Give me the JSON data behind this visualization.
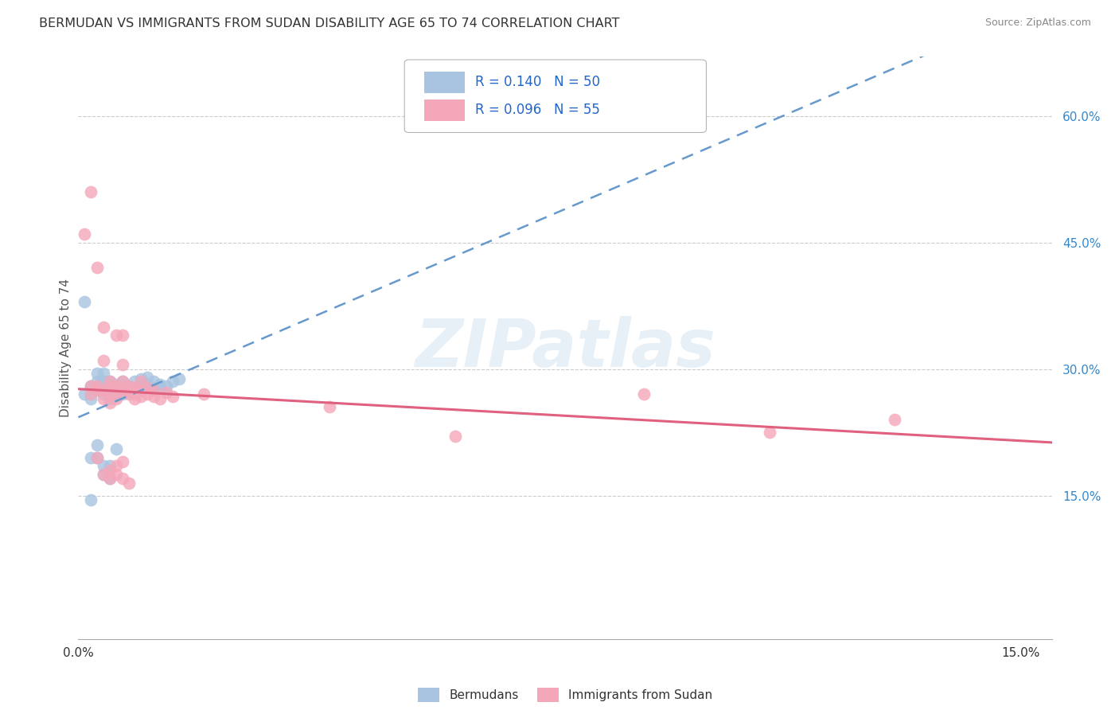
{
  "title": "BERMUDAN VS IMMIGRANTS FROM SUDAN DISABILITY AGE 65 TO 74 CORRELATION CHART",
  "source": "Source: ZipAtlas.com",
  "ylabel": "Disability Age 65 to 74",
  "xlim": [
    0.0,
    0.155
  ],
  "ylim": [
    -0.02,
    0.67
  ],
  "ytick_positions": [
    0.15,
    0.3,
    0.45,
    0.6
  ],
  "ytick_labels": [
    "15.0%",
    "30.0%",
    "45.0%",
    "60.0%"
  ],
  "xtick_positions": [
    0.0,
    0.15
  ],
  "xtick_labels": [
    "0.0%",
    "15.0%"
  ],
  "legend_labels": [
    "Bermudans",
    "Immigrants from Sudan"
  ],
  "r_blue": "0.140",
  "n_blue": "50",
  "r_pink": "0.096",
  "n_pink": "55",
  "blue_color": "#a8c4e0",
  "pink_color": "#f4a7b9",
  "blue_line_color": "#6699cc",
  "pink_line_color": "#e06080",
  "grid_color": "#cccccc",
  "watermark": "ZIPatlas",
  "blue_x": [
    0.001,
    0.002,
    0.002,
    0.003,
    0.003,
    0.003,
    0.004,
    0.004,
    0.004,
    0.005,
    0.005,
    0.005,
    0.005,
    0.006,
    0.006,
    0.006,
    0.006,
    0.006,
    0.007,
    0.007,
    0.007,
    0.007,
    0.008,
    0.008,
    0.008,
    0.009,
    0.009,
    0.009,
    0.01,
    0.01,
    0.01,
    0.011,
    0.011,
    0.012,
    0.012,
    0.013,
    0.013,
    0.014,
    0.015,
    0.016,
    0.001,
    0.002,
    0.003,
    0.003,
    0.004,
    0.004,
    0.005,
    0.005,
    0.006,
    0.002
  ],
  "blue_y": [
    0.27,
    0.265,
    0.28,
    0.275,
    0.285,
    0.295,
    0.27,
    0.285,
    0.295,
    0.275,
    0.285,
    0.265,
    0.28,
    0.27,
    0.278,
    0.275,
    0.282,
    0.268,
    0.275,
    0.28,
    0.27,
    0.285,
    0.278,
    0.272,
    0.28,
    0.275,
    0.285,
    0.278,
    0.28,
    0.275,
    0.288,
    0.282,
    0.29,
    0.278,
    0.285,
    0.282,
    0.278,
    0.28,
    0.285,
    0.288,
    0.38,
    0.195,
    0.195,
    0.21,
    0.175,
    0.185,
    0.17,
    0.185,
    0.205,
    0.145
  ],
  "pink_x": [
    0.001,
    0.002,
    0.002,
    0.003,
    0.003,
    0.004,
    0.004,
    0.004,
    0.005,
    0.005,
    0.005,
    0.006,
    0.006,
    0.006,
    0.007,
    0.007,
    0.007,
    0.008,
    0.008,
    0.008,
    0.009,
    0.009,
    0.01,
    0.01,
    0.011,
    0.011,
    0.012,
    0.013,
    0.014,
    0.015,
    0.003,
    0.004,
    0.005,
    0.006,
    0.007,
    0.008,
    0.009,
    0.01,
    0.012,
    0.02,
    0.002,
    0.003,
    0.004,
    0.005,
    0.006,
    0.007,
    0.04,
    0.06,
    0.09,
    0.11,
    0.005,
    0.006,
    0.007,
    0.008,
    0.13
  ],
  "pink_y": [
    0.46,
    0.28,
    0.27,
    0.275,
    0.28,
    0.31,
    0.265,
    0.275,
    0.28,
    0.27,
    0.285,
    0.265,
    0.275,
    0.28,
    0.34,
    0.285,
    0.275,
    0.275,
    0.28,
    0.27,
    0.265,
    0.278,
    0.275,
    0.285,
    0.278,
    0.27,
    0.268,
    0.265,
    0.272,
    0.268,
    0.42,
    0.35,
    0.26,
    0.34,
    0.305,
    0.275,
    0.27,
    0.268,
    0.275,
    0.27,
    0.51,
    0.195,
    0.175,
    0.18,
    0.185,
    0.19,
    0.255,
    0.22,
    0.27,
    0.225,
    0.17,
    0.175,
    0.17,
    0.165,
    0.24
  ]
}
